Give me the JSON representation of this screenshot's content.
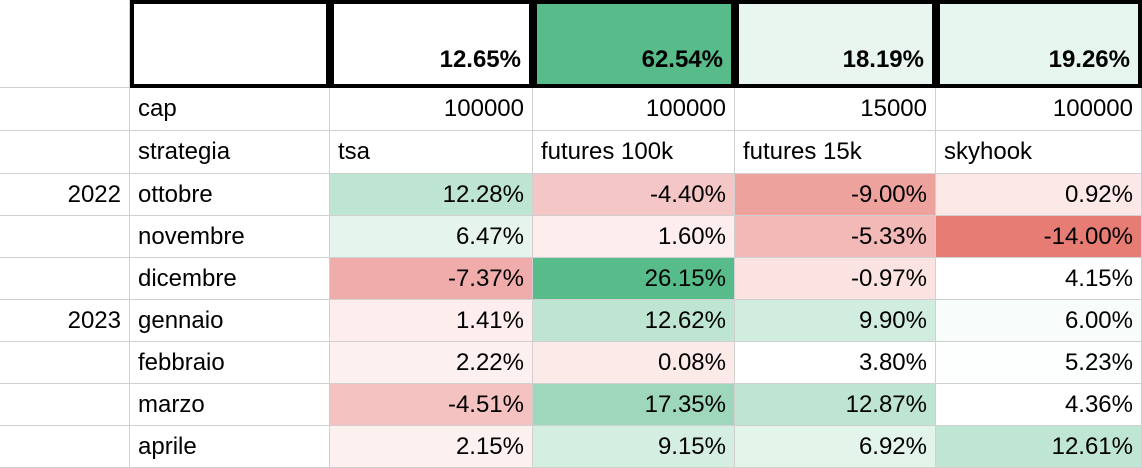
{
  "header": {
    "totals": [
      "12.65%",
      "62.54%",
      "18.19%",
      "19.26%"
    ],
    "total_colors": [
      "#ffffff",
      "#57bb8a",
      "#e8f6ef",
      "#e6f5ed"
    ]
  },
  "cap_row": {
    "label": "cap",
    "values": [
      "100000",
      "100000",
      "15000",
      "100000"
    ]
  },
  "strategy_row": {
    "label": "strategia",
    "values": [
      "tsa",
      "futures 100k",
      "futures 15k",
      "skyhook"
    ]
  },
  "rows": [
    {
      "year": "2022",
      "month": "ottobre",
      "values": [
        "12.28%",
        "-4.40%",
        "-9.00%",
        "0.92%"
      ],
      "colors": [
        "#bde5d2",
        "#f4c7c6",
        "#eea29e",
        "#fce8e7"
      ]
    },
    {
      "year": "",
      "month": "novembre",
      "values": [
        "6.47%",
        "1.60%",
        "-5.33%",
        "-14.00%"
      ],
      "colors": [
        "#e5f5ed",
        "#fdeeed",
        "#f2b9b6",
        "#e67c73"
      ]
    },
    {
      "year": "",
      "month": "dicembre",
      "values": [
        "-7.37%",
        "26.15%",
        "-0.97%",
        "4.15%"
      ],
      "colors": [
        "#efacaa",
        "#57bb8a",
        "#fbe3e2",
        "#ffffff"
      ]
    },
    {
      "year": "2023",
      "month": "gennaio",
      "values": [
        "1.41%",
        "12.62%",
        "9.90%",
        "6.00%"
      ],
      "colors": [
        "#fdeeed",
        "#bde5d2",
        "#d0eddf",
        "#f8fcfa"
      ]
    },
    {
      "year": "",
      "month": "febbraio",
      "values": [
        "2.22%",
        "0.08%",
        "3.80%",
        "5.23%"
      ],
      "colors": [
        "#fdf1f0",
        "#fceae9",
        "#ffffff",
        "#fdfefe"
      ]
    },
    {
      "year": "",
      "month": "marzo",
      "values": [
        "-4.51%",
        "17.35%",
        "12.87%",
        "4.36%"
      ],
      "colors": [
        "#f4c3c1",
        "#9ed7bb",
        "#bde5d2",
        "#ffffff"
      ]
    },
    {
      "year": "",
      "month": "aprile",
      "values": [
        "2.15%",
        "9.15%",
        "6.92%",
        "12.61%"
      ],
      "colors": [
        "#fdf1f0",
        "#d4eee1",
        "#e3f4eb",
        "#bfe6d3"
      ]
    }
  ]
}
